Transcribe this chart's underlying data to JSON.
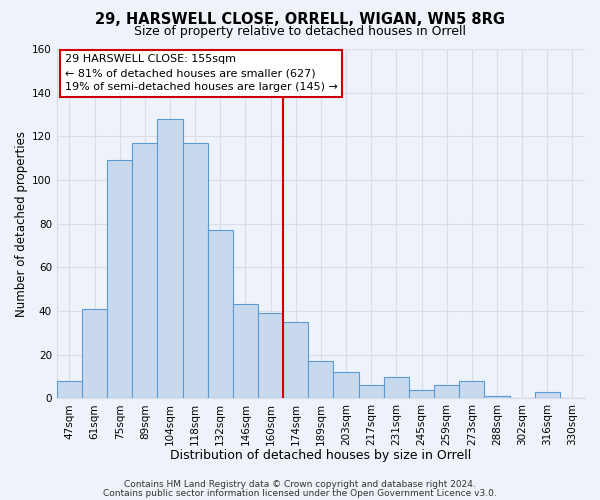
{
  "title": "29, HARSWELL CLOSE, ORRELL, WIGAN, WN5 8RG",
  "subtitle": "Size of property relative to detached houses in Orrell",
  "xlabel": "Distribution of detached houses by size in Orrell",
  "ylabel": "Number of detached properties",
  "bin_labels": [
    "47sqm",
    "61sqm",
    "75sqm",
    "89sqm",
    "104sqm",
    "118sqm",
    "132sqm",
    "146sqm",
    "160sqm",
    "174sqm",
    "189sqm",
    "203sqm",
    "217sqm",
    "231sqm",
    "245sqm",
    "259sqm",
    "273sqm",
    "288sqm",
    "302sqm",
    "316sqm",
    "330sqm"
  ],
  "bar_values": [
    8,
    41,
    109,
    117,
    128,
    117,
    77,
    43,
    39,
    35,
    17,
    12,
    6,
    10,
    4,
    6,
    8,
    1,
    0,
    3,
    0
  ],
  "bar_color": "#c8d9ee",
  "bar_edge_color": "#5b9bd5",
  "ylim": [
    0,
    160
  ],
  "yticks": [
    0,
    20,
    40,
    60,
    80,
    100,
    120,
    140,
    160
  ],
  "vline_x_bin": 8,
  "vline_color": "#cc0000",
  "annotation_title": "29 HARSWELL CLOSE: 155sqm",
  "annotation_line1": "← 81% of detached houses are smaller (627)",
  "annotation_line2": "19% of semi-detached houses are larger (145) →",
  "annotation_box_color": "#ffffff",
  "annotation_box_edge": "#cc0000",
  "footer1": "Contains HM Land Registry data © Crown copyright and database right 2024.",
  "footer2": "Contains public sector information licensed under the Open Government Licence v3.0.",
  "bg_color": "#eef2f9",
  "grid_color": "#d8dde8",
  "title_fontsize": 10.5,
  "subtitle_fontsize": 9,
  "xlabel_fontsize": 9,
  "ylabel_fontsize": 8.5,
  "tick_fontsize": 7.5,
  "annotation_fontsize": 8,
  "footer_fontsize": 6.5
}
